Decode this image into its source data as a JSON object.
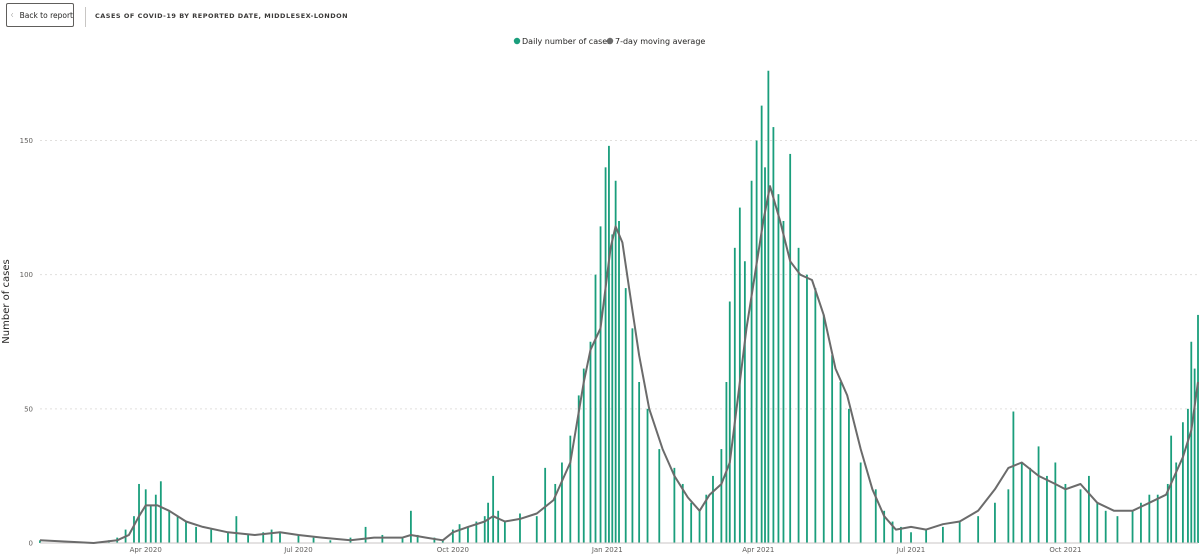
{
  "header": {
    "back_label": "Back to report",
    "title": "CASES OF COVID-19 BY REPORTED DATE, MIDDLESEX-LONDON"
  },
  "colors": {
    "bar": "#1a9e7c",
    "line": "#6b6b6b",
    "grid": "#e1dfdd"
  },
  "chart_data": {
    "type": "bar",
    "title": "",
    "xlabel": "",
    "ylabel": "Number of cases",
    "x_range": [
      "2020-01-29",
      "2021-12-19"
    ],
    "ylim": [
      0,
      180
    ],
    "y_ticks": [
      0,
      50,
      100,
      150
    ],
    "x_ticks": [
      {
        "label": "Apr 2020",
        "date": "2020-04-01"
      },
      {
        "label": "Jul 2020",
        "date": "2020-07-01"
      },
      {
        "label": "Oct 2020",
        "date": "2020-10-01"
      },
      {
        "label": "Jan 2021",
        "date": "2021-01-01"
      },
      {
        "label": "Apr 2021",
        "date": "2021-04-01"
      },
      {
        "label": "Jul 2021",
        "date": "2021-07-01"
      },
      {
        "label": "Oct 2021",
        "date": "2021-10-01"
      }
    ],
    "grid": "horizontal dotted",
    "legend_position": "top-center",
    "series": [
      {
        "name": "Daily number of cases",
        "type": "bar",
        "color": "#1a9e7c",
        "points": [
          [
            "2020-01-29",
            1
          ],
          [
            "2020-02-10",
            0
          ],
          [
            "2020-03-01",
            0
          ],
          [
            "2020-03-10",
            1
          ],
          [
            "2020-03-15",
            2
          ],
          [
            "2020-03-20",
            5
          ],
          [
            "2020-03-25",
            10
          ],
          [
            "2020-03-28",
            22
          ],
          [
            "2020-04-01",
            20
          ],
          [
            "2020-04-04",
            14
          ],
          [
            "2020-04-07",
            18
          ],
          [
            "2020-04-10",
            23
          ],
          [
            "2020-04-15",
            12
          ],
          [
            "2020-04-20",
            10
          ],
          [
            "2020-04-25",
            8
          ],
          [
            "2020-05-01",
            6
          ],
          [
            "2020-05-10",
            5
          ],
          [
            "2020-05-20",
            4
          ],
          [
            "2020-05-25",
            10
          ],
          [
            "2020-06-01",
            3
          ],
          [
            "2020-06-10",
            4
          ],
          [
            "2020-06-15",
            5
          ],
          [
            "2020-06-20",
            4
          ],
          [
            "2020-07-01",
            3
          ],
          [
            "2020-07-10",
            2
          ],
          [
            "2020-07-20",
            1
          ],
          [
            "2020-08-01",
            2
          ],
          [
            "2020-08-10",
            6
          ],
          [
            "2020-08-20",
            3
          ],
          [
            "2020-09-01",
            2
          ],
          [
            "2020-09-06",
            12
          ],
          [
            "2020-09-10",
            3
          ],
          [
            "2020-09-20",
            2
          ],
          [
            "2020-09-25",
            1
          ],
          [
            "2020-10-01",
            5
          ],
          [
            "2020-10-05",
            7
          ],
          [
            "2020-10-10",
            6
          ],
          [
            "2020-10-15",
            8
          ],
          [
            "2020-10-20",
            10
          ],
          [
            "2020-10-22",
            15
          ],
          [
            "2020-10-25",
            25
          ],
          [
            "2020-10-28",
            12
          ],
          [
            "2020-11-01",
            8
          ],
          [
            "2020-11-10",
            11
          ],
          [
            "2020-11-20",
            10
          ],
          [
            "2020-11-25",
            28
          ],
          [
            "2020-12-01",
            22
          ],
          [
            "2020-12-05",
            30
          ],
          [
            "2020-12-10",
            40
          ],
          [
            "2020-12-15",
            55
          ],
          [
            "2020-12-18",
            65
          ],
          [
            "2020-12-22",
            75
          ],
          [
            "2020-12-25",
            100
          ],
          [
            "2020-12-28",
            118
          ],
          [
            "2020-12-31",
            140
          ],
          [
            "2021-01-02",
            148
          ],
          [
            "2021-01-04",
            115
          ],
          [
            "2021-01-06",
            135
          ],
          [
            "2021-01-08",
            120
          ],
          [
            "2021-01-12",
            95
          ],
          [
            "2021-01-16",
            80
          ],
          [
            "2021-01-20",
            60
          ],
          [
            "2021-01-25",
            50
          ],
          [
            "2021-02-01",
            35
          ],
          [
            "2021-02-10",
            28
          ],
          [
            "2021-02-15",
            22
          ],
          [
            "2021-02-20",
            15
          ],
          [
            "2021-02-25",
            12
          ],
          [
            "2021-03-01",
            18
          ],
          [
            "2021-03-05",
            25
          ],
          [
            "2021-03-10",
            35
          ],
          [
            "2021-03-13",
            60
          ],
          [
            "2021-03-15",
            90
          ],
          [
            "2021-03-18",
            110
          ],
          [
            "2021-03-21",
            125
          ],
          [
            "2021-03-24",
            105
          ],
          [
            "2021-03-28",
            135
          ],
          [
            "2021-03-31",
            150
          ],
          [
            "2021-04-03",
            163
          ],
          [
            "2021-04-05",
            140
          ],
          [
            "2021-04-07",
            176
          ],
          [
            "2021-04-10",
            155
          ],
          [
            "2021-04-13",
            130
          ],
          [
            "2021-04-16",
            120
          ],
          [
            "2021-04-20",
            145
          ],
          [
            "2021-04-25",
            110
          ],
          [
            "2021-04-30",
            100
          ],
          [
            "2021-05-05",
            95
          ],
          [
            "2021-05-10",
            85
          ],
          [
            "2021-05-15",
            70
          ],
          [
            "2021-05-20",
            60
          ],
          [
            "2021-05-25",
            50
          ],
          [
            "2021-06-01",
            30
          ],
          [
            "2021-06-10",
            20
          ],
          [
            "2021-06-15",
            12
          ],
          [
            "2021-06-20",
            8
          ],
          [
            "2021-06-25",
            6
          ],
          [
            "2021-07-01",
            4
          ],
          [
            "2021-07-10",
            5
          ],
          [
            "2021-07-20",
            6
          ],
          [
            "2021-07-30",
            8
          ],
          [
            "2021-08-10",
            10
          ],
          [
            "2021-08-20",
            15
          ],
          [
            "2021-08-28",
            20
          ],
          [
            "2021-08-31",
            49
          ],
          [
            "2021-09-05",
            30
          ],
          [
            "2021-09-10",
            28
          ],
          [
            "2021-09-15",
            36
          ],
          [
            "2021-09-20",
            25
          ],
          [
            "2021-09-25",
            30
          ],
          [
            "2021-10-01",
            22
          ],
          [
            "2021-10-10",
            20
          ],
          [
            "2021-10-15",
            25
          ],
          [
            "2021-10-20",
            15
          ],
          [
            "2021-10-25",
            12
          ],
          [
            "2021-11-01",
            10
          ],
          [
            "2021-11-10",
            12
          ],
          [
            "2021-11-15",
            15
          ],
          [
            "2021-11-20",
            18
          ],
          [
            "2021-11-25",
            18
          ],
          [
            "2021-12-01",
            22
          ],
          [
            "2021-12-03",
            40
          ],
          [
            "2021-12-06",
            30
          ],
          [
            "2021-12-10",
            45
          ],
          [
            "2021-12-13",
            50
          ],
          [
            "2021-12-15",
            75
          ],
          [
            "2021-12-17",
            65
          ],
          [
            "2021-12-19",
            85
          ]
        ]
      },
      {
        "name": "7-day moving average",
        "type": "line",
        "color": "#6b6b6b",
        "points": [
          [
            "2020-01-29",
            1
          ],
          [
            "2020-03-01",
            0
          ],
          [
            "2020-03-15",
            1
          ],
          [
            "2020-03-22",
            3
          ],
          [
            "2020-03-28",
            10
          ],
          [
            "2020-04-01",
            14
          ],
          [
            "2020-04-08",
            14
          ],
          [
            "2020-04-15",
            12
          ],
          [
            "2020-04-25",
            8
          ],
          [
            "2020-05-05",
            6
          ],
          [
            "2020-05-20",
            4
          ],
          [
            "2020-06-05",
            3
          ],
          [
            "2020-06-20",
            4
          ],
          [
            "2020-07-01",
            3
          ],
          [
            "2020-07-15",
            2
          ],
          [
            "2020-08-01",
            1
          ],
          [
            "2020-08-15",
            2
          ],
          [
            "2020-09-01",
            2
          ],
          [
            "2020-09-06",
            3
          ],
          [
            "2020-09-15",
            2
          ],
          [
            "2020-09-25",
            1
          ],
          [
            "2020-10-01",
            4
          ],
          [
            "2020-10-10",
            6
          ],
          [
            "2020-10-20",
            8
          ],
          [
            "2020-10-25",
            10
          ],
          [
            "2020-11-01",
            8
          ],
          [
            "2020-11-10",
            9
          ],
          [
            "2020-11-20",
            11
          ],
          [
            "2020-11-30",
            16
          ],
          [
            "2020-12-10",
            30
          ],
          [
            "2020-12-18",
            60
          ],
          [
            "2020-12-22",
            72
          ],
          [
            "2020-12-28",
            80
          ],
          [
            "2021-01-03",
            110
          ],
          [
            "2021-01-06",
            118
          ],
          [
            "2021-01-10",
            112
          ],
          [
            "2021-01-14",
            95
          ],
          [
            "2021-01-20",
            70
          ],
          [
            "2021-01-26",
            50
          ],
          [
            "2021-02-03",
            35
          ],
          [
            "2021-02-10",
            25
          ],
          [
            "2021-02-18",
            17
          ],
          [
            "2021-02-25",
            12
          ],
          [
            "2021-03-03",
            18
          ],
          [
            "2021-03-10",
            22
          ],
          [
            "2021-03-15",
            30
          ],
          [
            "2021-03-20",
            55
          ],
          [
            "2021-03-25",
            80
          ],
          [
            "2021-03-30",
            100
          ],
          [
            "2021-04-04",
            120
          ],
          [
            "2021-04-08",
            133
          ],
          [
            "2021-04-14",
            120
          ],
          [
            "2021-04-20",
            105
          ],
          [
            "2021-04-26",
            100
          ],
          [
            "2021-05-03",
            98
          ],
          [
            "2021-05-10",
            85
          ],
          [
            "2021-05-17",
            65
          ],
          [
            "2021-05-24",
            55
          ],
          [
            "2021-06-01",
            35
          ],
          [
            "2021-06-08",
            20
          ],
          [
            "2021-06-15",
            10
          ],
          [
            "2021-06-22",
            5
          ],
          [
            "2021-07-01",
            6
          ],
          [
            "2021-07-10",
            5
          ],
          [
            "2021-07-20",
            7
          ],
          [
            "2021-07-30",
            8
          ],
          [
            "2021-08-10",
            12
          ],
          [
            "2021-08-20",
            20
          ],
          [
            "2021-08-28",
            28
          ],
          [
            "2021-09-05",
            30
          ],
          [
            "2021-09-15",
            25
          ],
          [
            "2021-09-25",
            22
          ],
          [
            "2021-10-01",
            20
          ],
          [
            "2021-10-10",
            22
          ],
          [
            "2021-10-20",
            15
          ],
          [
            "2021-10-30",
            12
          ],
          [
            "2021-11-10",
            12
          ],
          [
            "2021-11-20",
            15
          ],
          [
            "2021-11-30",
            18
          ],
          [
            "2021-12-05",
            25
          ],
          [
            "2021-12-10",
            32
          ],
          [
            "2021-12-15",
            42
          ],
          [
            "2021-12-19",
            60
          ]
        ]
      }
    ]
  }
}
